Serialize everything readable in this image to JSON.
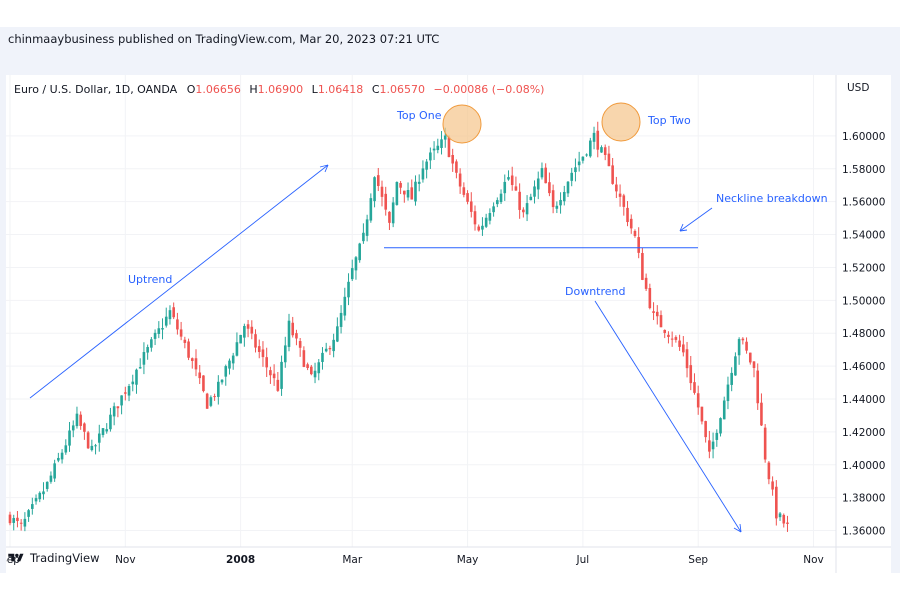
{
  "publish_line": "chinmaaybusiness published on TradingView.com, Mar 20, 2023 07:21 UTC",
  "brand": "TradingView",
  "legend": {
    "symbol": "Euro / U.S. Dollar, 1D, OANDA",
    "o_label": "O",
    "o_value": "1.06656",
    "h_label": "H",
    "h_value": "1.06900",
    "l_label": "L",
    "l_value": "1.06418",
    "c_label": "C",
    "c_value": "1.06570",
    "change": "−0.00086 (−0.08%)"
  },
  "colors": {
    "up": "#26a69a",
    "down": "#ef5350",
    "annotation": "#2962ff",
    "circle_fill": "#f5c48a",
    "circle_stroke": "#f09a3c"
  },
  "chart_data": {
    "type": "candlestick",
    "y_axis_label": "USD",
    "ylim": [
      1.35,
      1.62
    ],
    "y_ticks": [
      "1.60000",
      "1.58000",
      "1.56000",
      "1.54000",
      "1.52000",
      "1.50000",
      "1.48000",
      "1.46000",
      "1.44000",
      "1.42000",
      "1.40000",
      "1.38000",
      "1.36000"
    ],
    "x_ticks": [
      "Sep",
      "Nov",
      "2008",
      "Mar",
      "May",
      "Jul",
      "Sep",
      "Nov"
    ],
    "x_tick_bold": [
      false,
      false,
      true,
      false,
      false,
      false,
      false,
      false
    ],
    "x_tick_index": [
      0,
      31,
      62,
      92,
      123,
      154,
      185,
      216
    ],
    "grid": true,
    "neckline": 1.532,
    "key_points": [
      {
        "i": 0,
        "v": 1.368
      },
      {
        "i": 3,
        "v": 1.362
      },
      {
        "i": 10,
        "v": 1.388
      },
      {
        "i": 18,
        "v": 1.428
      },
      {
        "i": 22,
        "v": 1.408
      },
      {
        "i": 35,
        "v": 1.462
      },
      {
        "i": 43,
        "v": 1.493
      },
      {
        "i": 49,
        "v": 1.462
      },
      {
        "i": 53,
        "v": 1.437
      },
      {
        "i": 56,
        "v": 1.447
      },
      {
        "i": 63,
        "v": 1.485
      },
      {
        "i": 72,
        "v": 1.447
      },
      {
        "i": 75,
        "v": 1.485
      },
      {
        "i": 81,
        "v": 1.452
      },
      {
        "i": 88,
        "v": 1.482
      },
      {
        "i": 92,
        "v": 1.518
      },
      {
        "i": 95,
        "v": 1.538
      },
      {
        "i": 98,
        "v": 1.578
      },
      {
        "i": 102,
        "v": 1.545
      },
      {
        "i": 104,
        "v": 1.572
      },
      {
        "i": 108,
        "v": 1.562
      },
      {
        "i": 111,
        "v": 1.582
      },
      {
        "i": 117,
        "v": 1.598
      },
      {
        "i": 120,
        "v": 1.575
      },
      {
        "i": 126,
        "v": 1.542
      },
      {
        "i": 130,
        "v": 1.56
      },
      {
        "i": 134,
        "v": 1.575
      },
      {
        "i": 138,
        "v": 1.552
      },
      {
        "i": 143,
        "v": 1.578
      },
      {
        "i": 146,
        "v": 1.555
      },
      {
        "i": 151,
        "v": 1.578
      },
      {
        "i": 154,
        "v": 1.588
      },
      {
        "i": 157,
        "v": 1.6
      },
      {
        "i": 160,
        "v": 1.585
      },
      {
        "i": 164,
        "v": 1.562
      },
      {
        "i": 168,
        "v": 1.538
      },
      {
        "i": 170,
        "v": 1.515
      },
      {
        "i": 173,
        "v": 1.49
      },
      {
        "i": 178,
        "v": 1.478
      },
      {
        "i": 181,
        "v": 1.468
      },
      {
        "i": 185,
        "v": 1.435
      },
      {
        "i": 188,
        "v": 1.405
      },
      {
        "i": 192,
        "v": 1.44
      },
      {
        "i": 196,
        "v": 1.478
      },
      {
        "i": 200,
        "v": 1.458
      },
      {
        "i": 203,
        "v": 1.405
      },
      {
        "i": 206,
        "v": 1.37
      },
      {
        "i": 209,
        "v": 1.362
      }
    ],
    "annotations": [
      {
        "text": "Uptrend"
      },
      {
        "text": "Top One"
      },
      {
        "text": "Top Two"
      },
      {
        "text": "Neckline breakdown"
      },
      {
        "text": "Downtrend"
      }
    ]
  }
}
